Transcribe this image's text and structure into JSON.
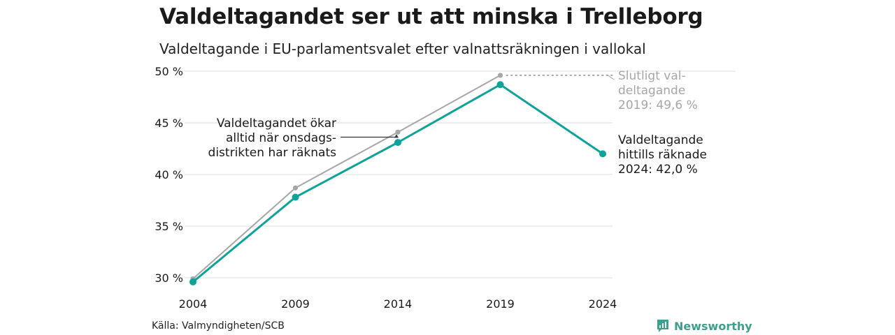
{
  "header": {
    "title": "Valdeltagandet ser ut att minska i Trelleborg",
    "subtitle": "Valdeltagande i EU-parlamentsvalet efter valnattsräkningen i vallokal"
  },
  "footer": {
    "source": "Källa: Valmyndigheten/SCB",
    "brand": "Newsworthy",
    "brand_icon": "newsworthy-logo-icon"
  },
  "colors": {
    "teal": "#0ea39a",
    "gray": "#a6a6a6",
    "gray_text": "#a6a6a6",
    "grid": "#e4e4e4",
    "brand": "#3f9f8f"
  },
  "chart_data": {
    "type": "line",
    "title": "Valdeltagandet ser ut att minska i Trelleborg",
    "subtitle": "Valdeltagande i EU-parlamentsvalet efter valnattsräkningen i vallokal",
    "x": [
      2004,
      2009,
      2014,
      2019,
      2024
    ],
    "ylim": [
      30,
      50
    ],
    "yticks": [
      30,
      35,
      40,
      45,
      50
    ],
    "ytick_labels": [
      "30 %",
      "35 %",
      "40 %",
      "45 %",
      "50 %"
    ],
    "xtick_labels": [
      "2004",
      "2009",
      "2014",
      "2019",
      "2024"
    ],
    "grid": true,
    "series": [
      {
        "key": "final",
        "values": [
          29.9,
          38.7,
          44.1,
          49.6,
          null
        ],
        "color": "#a6a6a6"
      },
      {
        "key": "counted",
        "values": [
          29.6,
          37.8,
          43.1,
          48.7,
          42.0
        ],
        "color": "#0ea39a"
      }
    ],
    "annotations": {
      "left": [
        "Valdeltagandet ökar",
        "alltid när onsdags-",
        "distrikten har räknats"
      ],
      "final_label": [
        "Slutligt val-",
        "deltagande",
        "2019: 49,6 %"
      ],
      "counted_label": [
        "Valdeltagande",
        "hittills räknade",
        "2024: 42,0 %"
      ]
    }
  }
}
